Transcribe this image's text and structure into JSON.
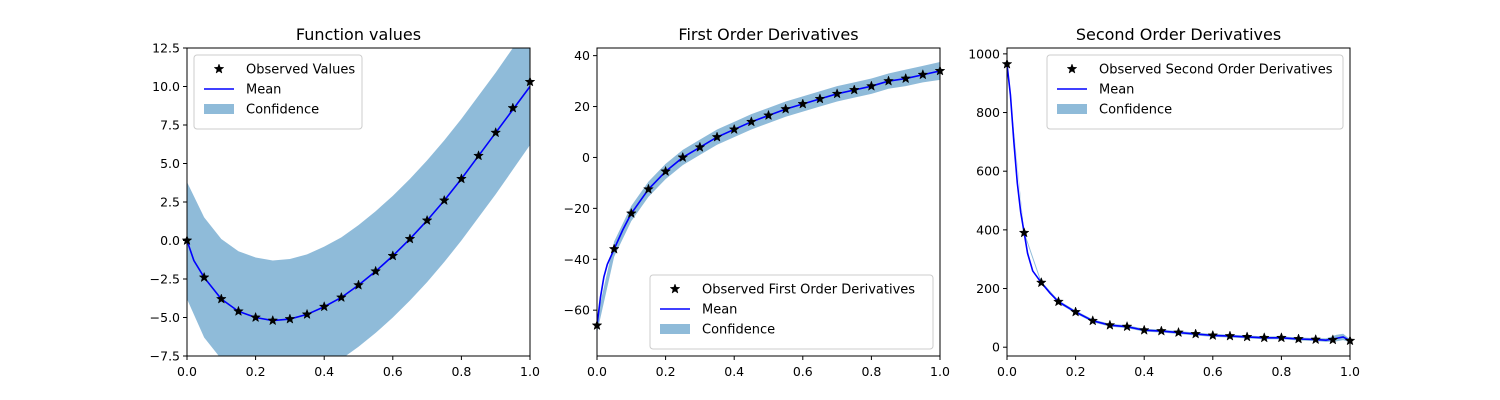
{
  "colors": {
    "mean": "#0000ff",
    "confidence": "#1f77b4",
    "observed": "#000000"
  },
  "chart_data": [
    {
      "type": "line",
      "title": "Function values",
      "xlim": [
        0,
        1.0
      ],
      "ylim": [
        -7.5,
        12.5
      ],
      "xticks": [
        0.0,
        0.2,
        0.4,
        0.6,
        0.8,
        1.0
      ],
      "xtick_labels": [
        "0.0",
        "0.2",
        "0.4",
        "0.6",
        "0.8",
        "1.0"
      ],
      "yticks": [
        -7.5,
        -5.0,
        -2.5,
        0.0,
        2.5,
        5.0,
        7.5,
        10.0,
        12.5
      ],
      "ytick_labels": [
        "−7.5",
        "−5.0",
        "−2.5",
        "0.0",
        "2.5",
        "5.0",
        "7.5",
        "10.0",
        "12.5"
      ],
      "legend": {
        "position": "upper-left",
        "labels": [
          "Observed Values",
          "Mean",
          "Confidence"
        ]
      },
      "observed": {
        "name": "Observed Values",
        "x": [
          0.0,
          0.05,
          0.1,
          0.15,
          0.2,
          0.25,
          0.3,
          0.35,
          0.4,
          0.45,
          0.5,
          0.55,
          0.6,
          0.65,
          0.7,
          0.75,
          0.8,
          0.85,
          0.9,
          0.95,
          1.0
        ],
        "y": [
          0.0,
          -2.4,
          -3.8,
          -4.6,
          -5.0,
          -5.2,
          -5.1,
          -4.8,
          -4.3,
          -3.7,
          -2.9,
          -2.0,
          -1.0,
          0.1,
          1.3,
          2.6,
          4.0,
          5.5,
          7.0,
          8.6,
          10.3
        ]
      },
      "mean": {
        "name": "Mean",
        "x": [
          0.0,
          0.02,
          0.05,
          0.1,
          0.15,
          0.2,
          0.25,
          0.3,
          0.35,
          0.4,
          0.45,
          0.5,
          0.55,
          0.6,
          0.65,
          0.7,
          0.75,
          0.8,
          0.85,
          0.9,
          0.95,
          1.0
        ],
        "y": [
          0.0,
          -1.3,
          -2.4,
          -3.8,
          -4.6,
          -5.0,
          -5.2,
          -5.1,
          -4.8,
          -4.3,
          -3.7,
          -2.9,
          -2.0,
          -1.0,
          0.1,
          1.3,
          2.6,
          4.0,
          5.5,
          7.0,
          8.5,
          10.0
        ]
      },
      "confidence": {
        "name": "Confidence",
        "x": [
          0.0,
          0.05,
          0.1,
          0.15,
          0.2,
          0.25,
          0.3,
          0.35,
          0.4,
          0.45,
          0.5,
          0.55,
          0.6,
          0.65,
          0.7,
          0.75,
          0.8,
          0.85,
          0.9,
          0.95,
          1.0
        ],
        "lower": [
          -3.8,
          -6.3,
          -7.7,
          -8.5,
          -9.0,
          -9.2,
          -9.1,
          -8.8,
          -8.3,
          -7.7,
          -6.9,
          -6.0,
          -5.0,
          -3.9,
          -2.7,
          -1.4,
          0.0,
          1.5,
          3.0,
          4.6,
          6.2
        ],
        "upper": [
          3.8,
          1.5,
          0.1,
          -0.7,
          -1.1,
          -1.3,
          -1.2,
          -0.9,
          -0.4,
          0.2,
          1.0,
          1.9,
          2.9,
          4.0,
          5.2,
          6.5,
          7.9,
          9.4,
          10.9,
          12.5,
          14.0
        ]
      }
    },
    {
      "type": "line",
      "title": "First Order Derivatives",
      "xlim": [
        0,
        1.0
      ],
      "ylim": [
        -78,
        43
      ],
      "xticks": [
        0.0,
        0.2,
        0.4,
        0.6,
        0.8,
        1.0
      ],
      "xtick_labels": [
        "0.0",
        "0.2",
        "0.4",
        "0.6",
        "0.8",
        "1.0"
      ],
      "yticks": [
        -60,
        -40,
        -20,
        0,
        20,
        40
      ],
      "ytick_labels": [
        "−60",
        "−40",
        "−20",
        "0",
        "20",
        "40"
      ],
      "legend": {
        "position": "lower-right",
        "labels": [
          "Observed First Order Derivatives",
          "Mean",
          "Confidence"
        ]
      },
      "observed": {
        "name": "Observed First Order Derivatives",
        "x": [
          0.0,
          0.05,
          0.1,
          0.15,
          0.2,
          0.25,
          0.3,
          0.35,
          0.4,
          0.45,
          0.5,
          0.55,
          0.6,
          0.65,
          0.7,
          0.75,
          0.8,
          0.85,
          0.9,
          0.95,
          1.0
        ],
        "y": [
          -66,
          -36,
          -22,
          -12.5,
          -5.5,
          0,
          4,
          8,
          11,
          14,
          16.5,
          19,
          21,
          23,
          25,
          26.5,
          28,
          30,
          31,
          32.5,
          34
        ]
      },
      "mean": {
        "name": "Mean",
        "x": [
          0.0,
          0.01,
          0.02,
          0.03,
          0.05,
          0.075,
          0.1,
          0.15,
          0.2,
          0.25,
          0.3,
          0.35,
          0.4,
          0.45,
          0.5,
          0.55,
          0.6,
          0.65,
          0.7,
          0.75,
          0.8,
          0.85,
          0.9,
          0.95,
          1.0
        ],
        "y": [
          -66,
          -55,
          -47,
          -42,
          -36,
          -28.5,
          -22,
          -12.5,
          -5.5,
          0,
          4,
          8,
          11,
          14,
          16.5,
          19,
          21,
          23,
          25,
          26.5,
          28,
          30,
          31,
          32.5,
          34
        ]
      },
      "confidence": {
        "name": "Confidence",
        "x": [
          0.0,
          0.05,
          0.1,
          0.15,
          0.2,
          0.25,
          0.3,
          0.35,
          0.4,
          0.45,
          0.5,
          0.55,
          0.6,
          0.65,
          0.7,
          0.75,
          0.8,
          0.85,
          0.9,
          0.95,
          1.0
        ],
        "lower": [
          -69,
          -39,
          -25,
          -15.5,
          -8.5,
          -3,
          1,
          5,
          8,
          11,
          13.5,
          16,
          18,
          20,
          22,
          23.5,
          25,
          27,
          28,
          29.5,
          30.5
        ],
        "upper": [
          -63,
          -33,
          -19,
          -9.5,
          -2.5,
          3,
          7,
          11,
          14,
          17,
          19.5,
          22,
          24,
          26,
          28,
          29.5,
          31,
          33,
          34.5,
          36,
          37.5
        ]
      }
    },
    {
      "type": "line",
      "title": "Second Order Derivatives",
      "xlim": [
        0,
        1.0
      ],
      "ylim": [
        -30,
        1020
      ],
      "xticks": [
        0.0,
        0.2,
        0.4,
        0.6,
        0.8,
        1.0
      ],
      "xtick_labels": [
        "0.0",
        "0.2",
        "0.4",
        "0.6",
        "0.8",
        "1.0"
      ],
      "yticks": [
        0,
        200,
        400,
        600,
        800,
        1000
      ],
      "ytick_labels": [
        "0",
        "200",
        "400",
        "600",
        "800",
        "1000"
      ],
      "legend": {
        "position": "upper-right",
        "labels": [
          "Observed Second Order Derivatives",
          "Mean",
          "Confidence"
        ]
      },
      "observed": {
        "name": "Observed Second Order Derivatives",
        "x": [
          0.0,
          0.05,
          0.1,
          0.15,
          0.2,
          0.25,
          0.3,
          0.35,
          0.4,
          0.45,
          0.5,
          0.55,
          0.6,
          0.65,
          0.7,
          0.75,
          0.8,
          0.85,
          0.9,
          0.95,
          1.0
        ],
        "y": [
          965,
          390,
          220,
          155,
          120,
          90,
          75,
          70,
          58,
          55,
          50,
          45,
          40,
          38,
          35,
          32,
          32,
          28,
          26,
          25,
          22
        ]
      },
      "mean": {
        "name": "Mean",
        "x": [
          0.0,
          0.01,
          0.02,
          0.03,
          0.04,
          0.05,
          0.06,
          0.075,
          0.1,
          0.125,
          0.15,
          0.2,
          0.25,
          0.3,
          0.35,
          0.4,
          0.45,
          0.5,
          0.55,
          0.6,
          0.65,
          0.7,
          0.75,
          0.8,
          0.85,
          0.9,
          0.93,
          0.96,
          0.98,
          1.0
        ],
        "y": [
          965,
          860,
          700,
          560,
          460,
          390,
          320,
          260,
          220,
          185,
          155,
          120,
          90,
          75,
          70,
          58,
          55,
          50,
          45,
          40,
          38,
          35,
          32,
          32,
          28,
          26,
          24,
          30,
          35,
          22
        ]
      },
      "confidence": {
        "name": "Confidence",
        "x": [
          0.0,
          0.05,
          0.1,
          0.15,
          0.2,
          0.25,
          0.3,
          0.35,
          0.4,
          0.45,
          0.5,
          0.55,
          0.6,
          0.65,
          0.7,
          0.75,
          0.8,
          0.85,
          0.9,
          0.93,
          0.96,
          0.98,
          1.0
        ],
        "lower": [
          960,
          385,
          215,
          150,
          115,
          85,
          70,
          65,
          53,
          50,
          45,
          40,
          35,
          33,
          30,
          27,
          27,
          23,
          21,
          18,
          20,
          24,
          17
        ],
        "upper": [
          970,
          395,
          225,
          160,
          125,
          95,
          80,
          75,
          63,
          60,
          55,
          50,
          45,
          43,
          40,
          37,
          37,
          33,
          31,
          30,
          42,
          46,
          27
        ]
      }
    }
  ]
}
